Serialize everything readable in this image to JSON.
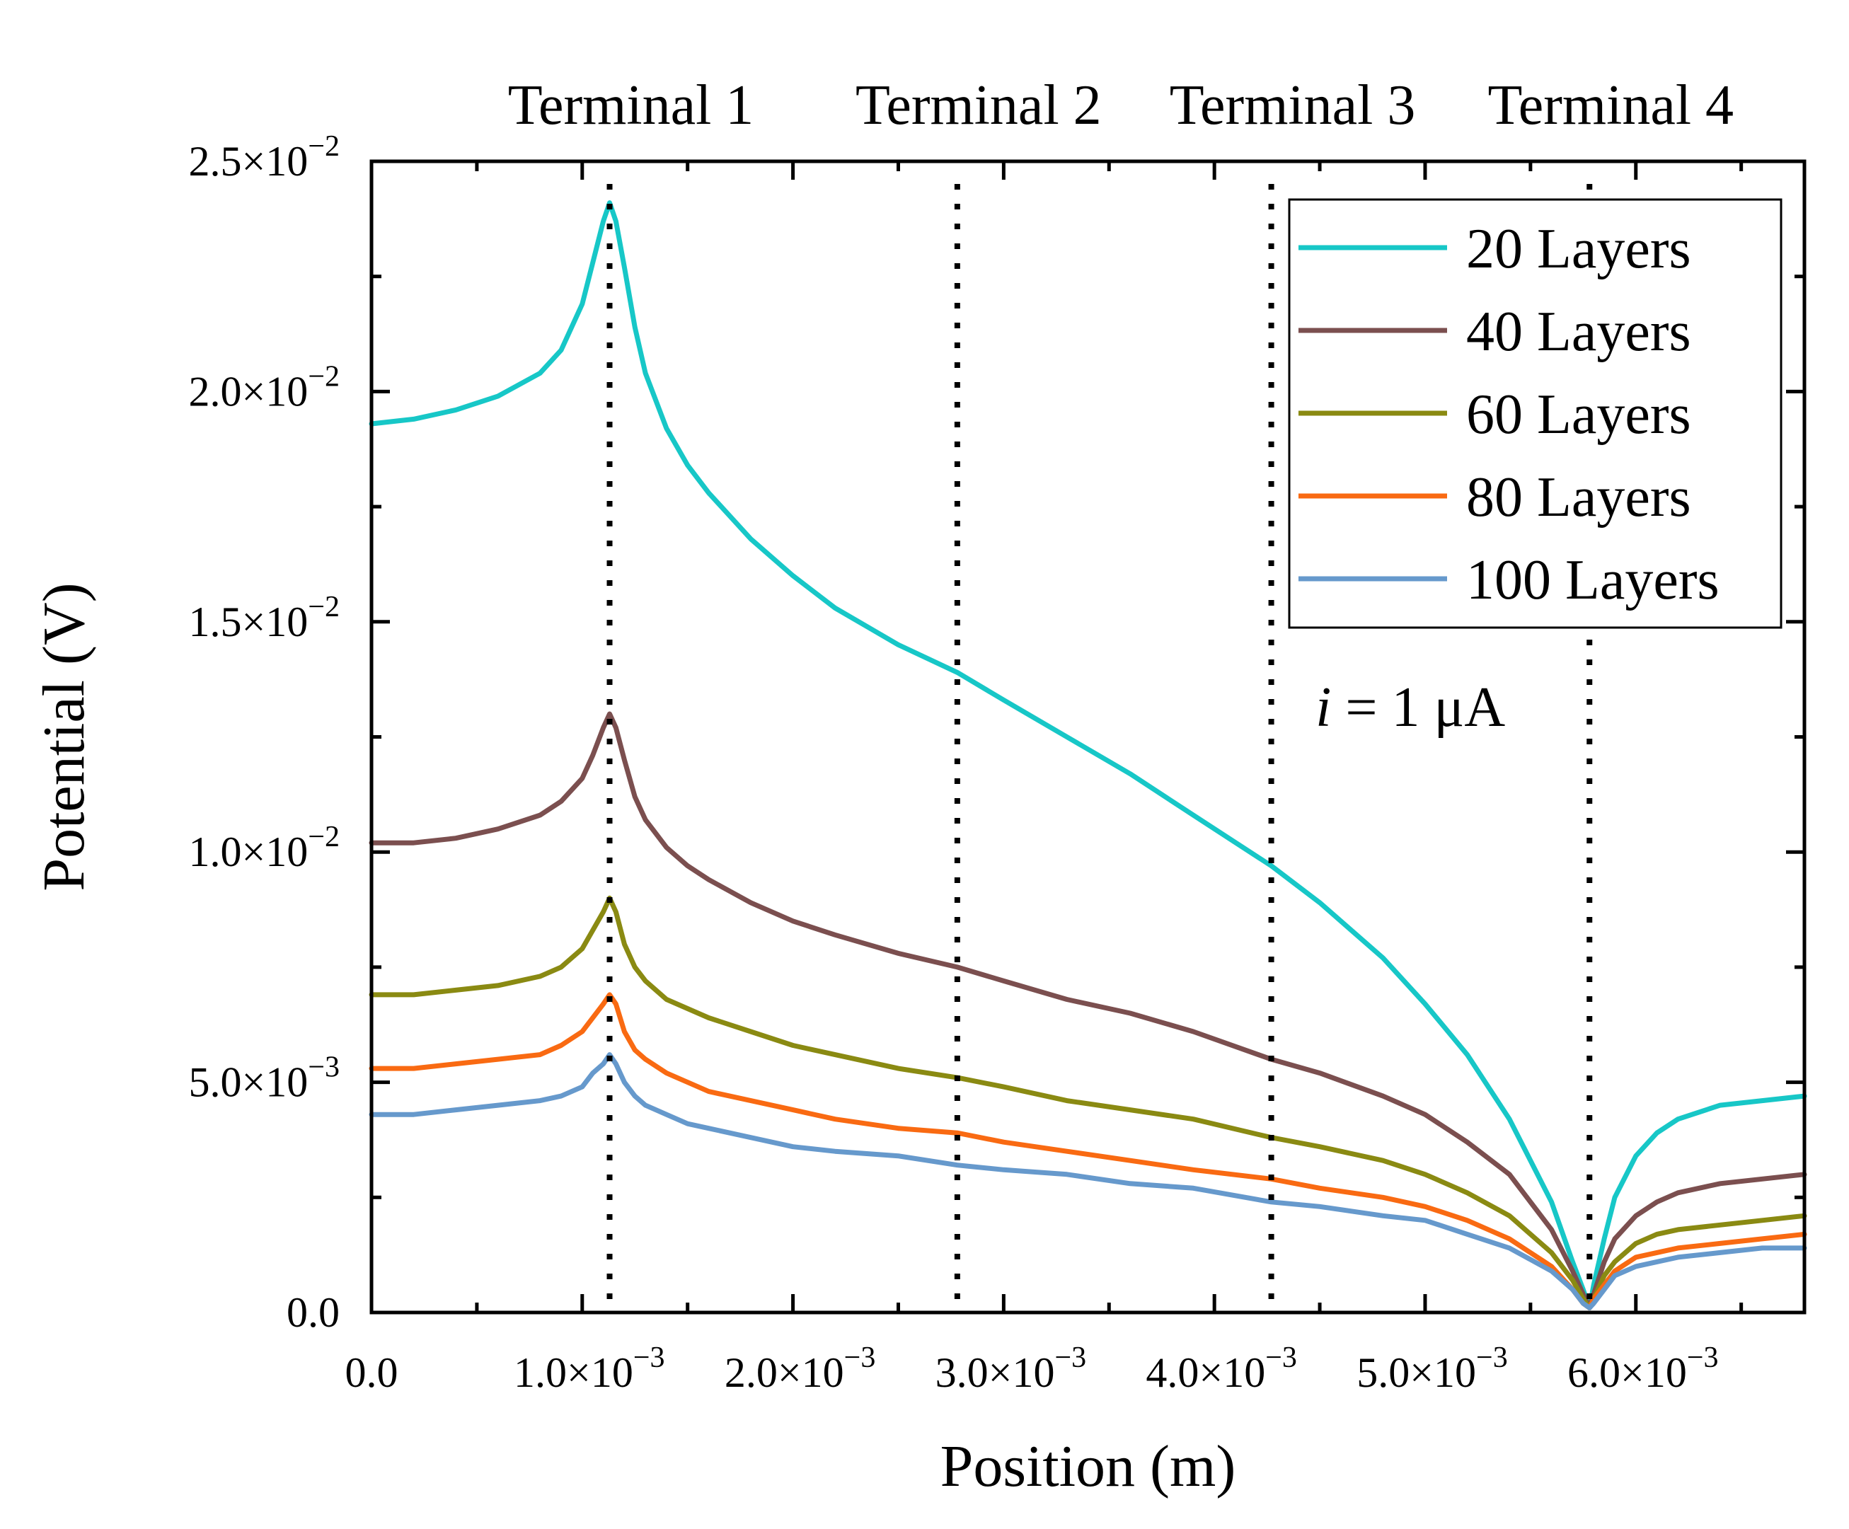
{
  "chart_data": {
    "type": "line",
    "xlabel": "Position (m)",
    "ylabel": "Potential (V)",
    "xlim": [
      0,
      0.0068
    ],
    "ylim": [
      0,
      0.025
    ],
    "x_ticks": [
      {
        "value": 0,
        "mant": "0.0",
        "exp": ""
      },
      {
        "value": 0.001,
        "mant": "1.0×10",
        "exp": "−3"
      },
      {
        "value": 0.002,
        "mant": "2.0×10",
        "exp": "−3"
      },
      {
        "value": 0.003,
        "mant": "3.0×10",
        "exp": "−3"
      },
      {
        "value": 0.004,
        "mant": "4.0×10",
        "exp": "−3"
      },
      {
        "value": 0.005,
        "mant": "5.0×10",
        "exp": "−3"
      },
      {
        "value": 0.006,
        "mant": "6.0×10",
        "exp": "−3"
      }
    ],
    "y_ticks": [
      {
        "value": 0,
        "mant": "0.0",
        "exp": ""
      },
      {
        "value": 0.005,
        "mant": "5.0×10",
        "exp": "−3"
      },
      {
        "value": 0.01,
        "mant": "1.0×10",
        "exp": "−2"
      },
      {
        "value": 0.015,
        "mant": "1.5×10",
        "exp": "−2"
      },
      {
        "value": 0.02,
        "mant": "2.0×10",
        "exp": "−2"
      },
      {
        "value": 0.025,
        "mant": "2.5×10",
        "exp": "−2"
      }
    ],
    "terminals": [
      {
        "label": "Terminal 1",
        "x": 0.00113
      },
      {
        "label": "Terminal 2",
        "x": 0.00278
      },
      {
        "label": "Terminal 3",
        "x": 0.00427
      },
      {
        "label": "Terminal 4",
        "x": 0.00578
      }
    ],
    "annotation": {
      "italic": "i",
      "rest": " = 1 μA",
      "x": 0.00448,
      "y": 0.0132
    },
    "series": [
      {
        "name": "20 Layers",
        "color": "#17c7c7",
        "x": [
          0,
          0.0002,
          0.0004,
          0.0006,
          0.0008,
          0.0009,
          0.001,
          0.00105,
          0.0011,
          0.00113,
          0.00116,
          0.0012,
          0.00125,
          0.0013,
          0.0014,
          0.0015,
          0.0016,
          0.0018,
          0.002,
          0.0022,
          0.0025,
          0.00278,
          0.003,
          0.0033,
          0.0036,
          0.0039,
          0.00427,
          0.0045,
          0.0048,
          0.005,
          0.0052,
          0.0054,
          0.0056,
          0.0057,
          0.00575,
          0.00578,
          0.0058,
          0.00585,
          0.0059,
          0.006,
          0.0061,
          0.0062,
          0.0064,
          0.0066,
          0.0068
        ],
        "y": [
          0.0193,
          0.0194,
          0.0196,
          0.0199,
          0.0204,
          0.0209,
          0.0219,
          0.0228,
          0.0237,
          0.0241,
          0.0237,
          0.0227,
          0.0214,
          0.0204,
          0.0192,
          0.0184,
          0.0178,
          0.0168,
          0.016,
          0.0153,
          0.0145,
          0.0139,
          0.0133,
          0.0125,
          0.0117,
          0.0108,
          0.0097,
          0.0089,
          0.0077,
          0.0067,
          0.0056,
          0.0042,
          0.0024,
          0.0011,
          0.0005,
          0.0001,
          0.0006,
          0.0016,
          0.0025,
          0.0034,
          0.0039,
          0.0042,
          0.0045,
          0.0046,
          0.0047
        ]
      },
      {
        "name": "40 Layers",
        "color": "#7b4f4f",
        "x": [
          0,
          0.0002,
          0.0004,
          0.0006,
          0.0008,
          0.0009,
          0.001,
          0.00105,
          0.0011,
          0.00113,
          0.00116,
          0.0012,
          0.00125,
          0.0013,
          0.0014,
          0.0015,
          0.0016,
          0.0018,
          0.002,
          0.0022,
          0.0025,
          0.00278,
          0.003,
          0.0033,
          0.0036,
          0.0039,
          0.00427,
          0.0045,
          0.0048,
          0.005,
          0.0052,
          0.0054,
          0.0056,
          0.0057,
          0.00575,
          0.00578,
          0.0058,
          0.00585,
          0.0059,
          0.006,
          0.0061,
          0.0062,
          0.0064,
          0.0066,
          0.0068
        ],
        "y": [
          0.0102,
          0.0102,
          0.0103,
          0.0105,
          0.0108,
          0.0111,
          0.0116,
          0.0121,
          0.0127,
          0.013,
          0.0127,
          0.012,
          0.0112,
          0.0107,
          0.0101,
          0.0097,
          0.0094,
          0.0089,
          0.0085,
          0.0082,
          0.0078,
          0.0075,
          0.0072,
          0.0068,
          0.0065,
          0.0061,
          0.0055,
          0.0052,
          0.0047,
          0.0043,
          0.0037,
          0.003,
          0.0018,
          0.0009,
          0.0004,
          0.0001,
          0.0004,
          0.0011,
          0.0016,
          0.0021,
          0.0024,
          0.0026,
          0.0028,
          0.0029,
          0.003
        ]
      },
      {
        "name": "60 Layers",
        "color": "#8a8a12",
        "x": [
          0,
          0.0002,
          0.0004,
          0.0006,
          0.0008,
          0.0009,
          0.001,
          0.00105,
          0.0011,
          0.00113,
          0.00116,
          0.0012,
          0.00125,
          0.0013,
          0.0014,
          0.0015,
          0.0016,
          0.0018,
          0.002,
          0.0022,
          0.0025,
          0.00278,
          0.003,
          0.0033,
          0.0036,
          0.0039,
          0.00427,
          0.0045,
          0.0048,
          0.005,
          0.0052,
          0.0054,
          0.0056,
          0.0057,
          0.00575,
          0.00578,
          0.0058,
          0.00585,
          0.0059,
          0.006,
          0.0061,
          0.0062,
          0.0064,
          0.0066,
          0.0068
        ],
        "y": [
          0.0069,
          0.0069,
          0.007,
          0.0071,
          0.0073,
          0.0075,
          0.0079,
          0.0083,
          0.0087,
          0.009,
          0.0087,
          0.008,
          0.0075,
          0.0072,
          0.0068,
          0.0066,
          0.0064,
          0.0061,
          0.0058,
          0.0056,
          0.0053,
          0.0051,
          0.0049,
          0.0046,
          0.0044,
          0.0042,
          0.0038,
          0.0036,
          0.0033,
          0.003,
          0.0026,
          0.0021,
          0.0013,
          0.0007,
          0.0003,
          0.0001,
          0.0003,
          0.0008,
          0.0011,
          0.0015,
          0.0017,
          0.0018,
          0.0019,
          0.002,
          0.0021
        ]
      },
      {
        "name": "80 Layers",
        "color": "#f96a12",
        "x": [
          0,
          0.0002,
          0.0004,
          0.0006,
          0.0008,
          0.0009,
          0.001,
          0.00105,
          0.0011,
          0.00113,
          0.00116,
          0.0012,
          0.00125,
          0.0013,
          0.0014,
          0.0015,
          0.0016,
          0.0018,
          0.002,
          0.0022,
          0.0025,
          0.00278,
          0.003,
          0.0033,
          0.0036,
          0.0039,
          0.00427,
          0.0045,
          0.0048,
          0.005,
          0.0052,
          0.0054,
          0.0056,
          0.0057,
          0.00575,
          0.00578,
          0.0058,
          0.00585,
          0.0059,
          0.006,
          0.0061,
          0.0062,
          0.0064,
          0.0066,
          0.0068
        ],
        "y": [
          0.0053,
          0.0053,
          0.0054,
          0.0055,
          0.0056,
          0.0058,
          0.0061,
          0.0064,
          0.0067,
          0.0069,
          0.0067,
          0.0061,
          0.0057,
          0.0055,
          0.0052,
          0.005,
          0.0048,
          0.0046,
          0.0044,
          0.0042,
          0.004,
          0.0039,
          0.0037,
          0.0035,
          0.0033,
          0.0031,
          0.0029,
          0.0027,
          0.0025,
          0.0023,
          0.002,
          0.0016,
          0.001,
          0.0005,
          0.0002,
          0.0001,
          0.0003,
          0.0006,
          0.0009,
          0.0012,
          0.0013,
          0.0014,
          0.0015,
          0.0016,
          0.0017
        ]
      },
      {
        "name": "100 Layers",
        "color": "#6699cc",
        "x": [
          0,
          0.0002,
          0.0004,
          0.0006,
          0.0008,
          0.0009,
          0.001,
          0.00105,
          0.0011,
          0.00113,
          0.00116,
          0.0012,
          0.00125,
          0.0013,
          0.0014,
          0.0015,
          0.0016,
          0.0018,
          0.002,
          0.0022,
          0.0025,
          0.00278,
          0.003,
          0.0033,
          0.0036,
          0.0039,
          0.00427,
          0.0045,
          0.0048,
          0.005,
          0.0052,
          0.0054,
          0.0056,
          0.0057,
          0.00575,
          0.00578,
          0.0058,
          0.00585,
          0.0059,
          0.006,
          0.0061,
          0.0062,
          0.0064,
          0.0066,
          0.0068
        ],
        "y": [
          0.0043,
          0.0043,
          0.0044,
          0.0045,
          0.0046,
          0.0047,
          0.0049,
          0.0052,
          0.0054,
          0.0056,
          0.0054,
          0.005,
          0.0047,
          0.0045,
          0.0043,
          0.0041,
          0.004,
          0.0038,
          0.0036,
          0.0035,
          0.0034,
          0.0032,
          0.0031,
          0.003,
          0.0028,
          0.0027,
          0.0024,
          0.0023,
          0.0021,
          0.002,
          0.0017,
          0.0014,
          0.0009,
          0.0005,
          0.0002,
          0.0001,
          0.0002,
          0.0005,
          0.0008,
          0.001,
          0.0011,
          0.0012,
          0.0013,
          0.0014,
          0.0014
        ]
      }
    ]
  }
}
